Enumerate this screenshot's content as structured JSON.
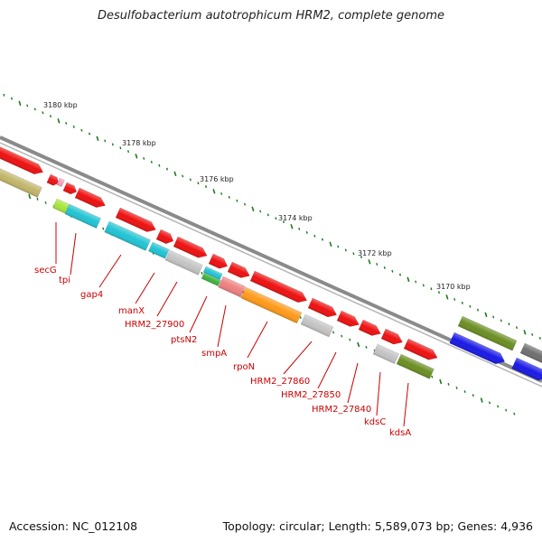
{
  "title": "Desulfobacterium autotrophicum HRM2, complete genome",
  "footer": {
    "accession": "Accession: NC_012108",
    "summary": "Topology: circular; Length: 5,589,073 bp; Genes: 4,936"
  },
  "colors": {
    "backbone": "#8a8a8a",
    "tick": "#1a7a1a",
    "label": "#cc0000",
    "red_gene": "#ee1111",
    "cyan_gene": "#22c4d4",
    "gray_gene": "#c4c4c4",
    "olive_gene": "#6b8e23",
    "blue_gene": "#1a1ae6",
    "khaki_gene": "#c2b66a"
  },
  "scale_labels": [
    "3180 kbp",
    "3178 kbp",
    "3176 kbp",
    "3174 kbp",
    "3172 kbp",
    "3170 kbp"
  ],
  "gene_labels": [
    "secG",
    "tpi",
    "gap4",
    "manX",
    "HRM2_27900",
    "ptsN2",
    "smpA",
    "rpoN",
    "HRM2_27860",
    "HRM2_27850",
    "HRM2_27840",
    "kdsC",
    "kdsA"
  ]
}
